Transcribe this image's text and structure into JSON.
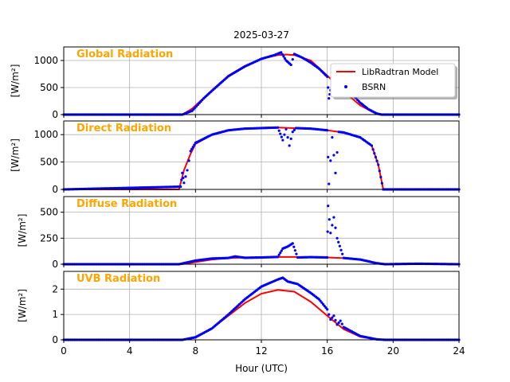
{
  "figure": {
    "title": "2025-03-27",
    "xlabel": "Hour (UTC)",
    "colors": {
      "model": "#ff0000",
      "obs": "#0000ff",
      "panel_title": "#ffa500",
      "grid": "#b0b0b0"
    }
  },
  "legend": {
    "model_label": "LibRadtran Model",
    "obs_label": "BSRN",
    "placement": "upper-right of first panel"
  },
  "chart_data": [
    {
      "type": "line",
      "title": "Global Radiation",
      "ylabel": "[W/m²]",
      "xlim": [
        0,
        24
      ],
      "ylim": [
        0,
        1250
      ],
      "yticks": [
        0,
        500,
        1000
      ],
      "xticks": [
        0,
        4,
        8,
        12,
        16,
        20,
        24
      ],
      "grid": true,
      "series": [
        {
          "name": "LibRadtran Model",
          "x": [
            0,
            7.2,
            7.8,
            9,
            10,
            11,
            12,
            13,
            13.5,
            14,
            15,
            16,
            17,
            18,
            19,
            19.5,
            24
          ],
          "y": [
            0,
            0,
            110,
            450,
            720,
            900,
            1030,
            1100,
            1110,
            1100,
            1000,
            720,
            430,
            170,
            10,
            0,
            0
          ]
        },
        {
          "name": "BSRN",
          "x": [
            0,
            7.2,
            7.8,
            8.5,
            9,
            10,
            11,
            12,
            12.8,
            13.2,
            13.5,
            13.8,
            14.0,
            14.5,
            15,
            15.5,
            16,
            16.1,
            16.2,
            16.4,
            16.6,
            17,
            17.5,
            18,
            18.5,
            19,
            19.3,
            24
          ],
          "y": [
            0,
            0,
            70,
            300,
            440,
            710,
            890,
            1030,
            1100,
            1150,
            1000,
            920,
            1120,
            1050,
            960,
            850,
            700,
            300,
            450,
            550,
            640,
            500,
            380,
            220,
            100,
            20,
            0,
            0
          ]
        }
      ]
    },
    {
      "type": "line",
      "title": "Direct Radiation",
      "ylabel": "[W/m²]",
      "xlim": [
        0,
        24
      ],
      "ylim": [
        0,
        1250
      ],
      "yticks": [
        0,
        500,
        1000
      ],
      "xticks": [
        0,
        4,
        8,
        12,
        16,
        20,
        24
      ],
      "grid": true,
      "series": [
        {
          "name": "LibRadtran Model",
          "x": [
            0,
            7.0,
            7.3,
            7.7,
            8,
            9,
            10,
            11,
            12,
            13,
            14,
            15,
            16,
            16.5,
            17,
            18,
            18.7,
            19.1,
            19.4,
            24
          ],
          "y": [
            0,
            0,
            350,
            650,
            830,
            1000,
            1080,
            1110,
            1120,
            1130,
            1120,
            1110,
            1080,
            1060,
            1040,
            950,
            800,
            450,
            0,
            0
          ]
        },
        {
          "name": "BSRN",
          "x": [
            0,
            7.1,
            7.2,
            7.3,
            7.5,
            7.7,
            8,
            9,
            10,
            11,
            12,
            13,
            13.3,
            13.5,
            13.7,
            13.9,
            14.1,
            15,
            16,
            16.1,
            16.3,
            16.5,
            16.7,
            17,
            18,
            18.7,
            19.1,
            19.4,
            24
          ],
          "y": [
            0,
            50,
            300,
            120,
            350,
            700,
            850,
            1000,
            1080,
            1110,
            1120,
            1130,
            900,
            1100,
            800,
            1050,
            1120,
            1110,
            1080,
            100,
            950,
            300,
            1050,
            1040,
            950,
            800,
            450,
            0,
            0
          ]
        }
      ]
    },
    {
      "type": "line",
      "title": "Diffuse Radiation",
      "ylabel": "[W/m²]",
      "xlim": [
        0,
        24
      ],
      "ylim": [
        0,
        650
      ],
      "yticks": [
        0,
        250,
        500
      ],
      "xticks": [
        0,
        4,
        8,
        12,
        16,
        20,
        24
      ],
      "grid": true,
      "series": [
        {
          "name": "LibRadtran Model",
          "x": [
            0,
            7.2,
            8,
            9,
            10,
            11,
            12,
            13,
            14,
            15,
            16,
            17,
            18,
            19,
            19.5,
            24
          ],
          "y": [
            0,
            0,
            20,
            45,
            58,
            65,
            68,
            70,
            70,
            68,
            65,
            58,
            45,
            10,
            0,
            0
          ]
        },
        {
          "name": "BSRN",
          "x": [
            0,
            7.0,
            8,
            9,
            10,
            10.4,
            11,
            12,
            13,
            13.3,
            13.6,
            13.9,
            14.2,
            15,
            16,
            16.05,
            16.2,
            16.4,
            16.6,
            17,
            18,
            19,
            19.5,
            21.5,
            24
          ],
          "y": [
            0,
            0,
            35,
            55,
            60,
            75,
            62,
            65,
            70,
            150,
            170,
            200,
            65,
            68,
            65,
            560,
            300,
            450,
            250,
            60,
            45,
            10,
            0,
            5,
            0
          ]
        }
      ]
    },
    {
      "type": "line",
      "title": "UVB Radiation",
      "ylabel": "[W/m²]",
      "xlim": [
        0,
        24
      ],
      "ylim": [
        0,
        2.7
      ],
      "yticks": [
        0,
        1,
        2
      ],
      "xticks": [
        0,
        4,
        8,
        12,
        16,
        20,
        24
      ],
      "grid": true,
      "series": [
        {
          "name": "LibRadtran Model",
          "x": [
            0,
            7.2,
            8,
            9,
            10,
            11,
            12,
            13,
            14,
            15,
            16,
            17,
            18,
            19,
            19.5,
            24
          ],
          "y": [
            0,
            0,
            0.12,
            0.45,
            0.95,
            1.45,
            1.82,
            1.97,
            1.9,
            1.5,
            0.95,
            0.42,
            0.12,
            0.01,
            0,
            0
          ]
        },
        {
          "name": "BSRN",
          "x": [
            0,
            7.2,
            8,
            9,
            10,
            11,
            12,
            13,
            13.3,
            13.6,
            13.9,
            14.2,
            15,
            15.5,
            16,
            16.2,
            16.4,
            16.6,
            16.8,
            17,
            18,
            19,
            19.5,
            24
          ],
          "y": [
            0,
            0,
            0.1,
            0.45,
            1.0,
            1.6,
            2.1,
            2.38,
            2.45,
            2.3,
            2.25,
            2.2,
            1.85,
            1.6,
            1.2,
            0.8,
            0.95,
            0.6,
            0.75,
            0.5,
            0.15,
            0.02,
            0,
            0
          ]
        }
      ]
    }
  ]
}
